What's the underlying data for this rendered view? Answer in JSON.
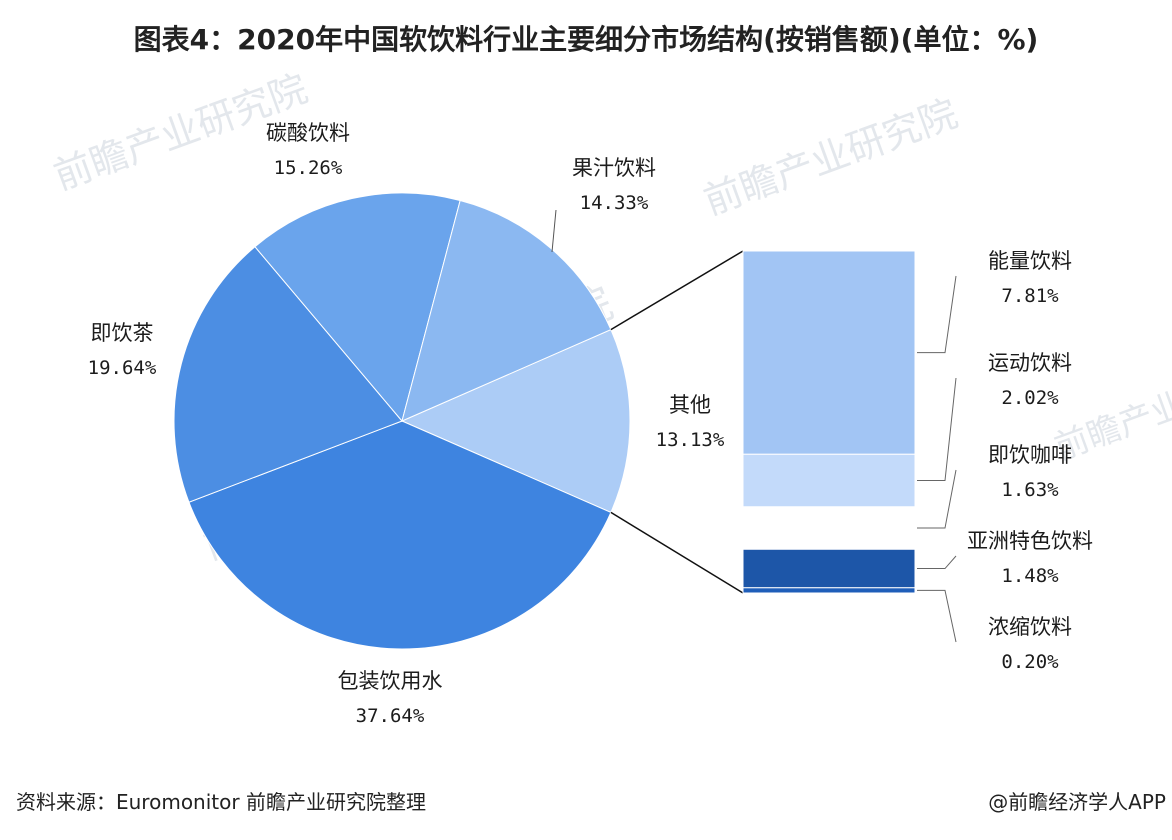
{
  "title": "图表4：2020年中国软饮料行业主要细分市场结构(按销售额)(单位：%)",
  "footer": {
    "source": "资料来源：Euromonitor 前瞻产业研究院整理",
    "brand": "@前瞻经济学人APP"
  },
  "watermark": "前瞻产业研究院",
  "chart_data": {
    "type": "bar-of-pie",
    "pie": {
      "slices": [
        {
          "name": "包装饮用水",
          "value": 37.64,
          "label": "37.64%",
          "color": "#3e84e0"
        },
        {
          "name": "即饮茶",
          "value": 19.64,
          "label": "19.64%",
          "color": "#4c8ee3"
        },
        {
          "name": "碳酸饮料",
          "value": 15.26,
          "label": "15.26%",
          "color": "#6aa4ec"
        },
        {
          "name": "果汁饮料",
          "value": 14.33,
          "label": "14.33%",
          "color": "#8bb8f1"
        },
        {
          "name": "其他",
          "value": 13.13,
          "label": "13.13%",
          "color": "#acccf6"
        }
      ]
    },
    "bar": {
      "of": "其他",
      "segments": [
        {
          "name": "能量饮料",
          "value": 7.81,
          "label": "7.81%",
          "color": "#a2c5f4"
        },
        {
          "name": "运动饮料",
          "value": 2.02,
          "label": "2.02%",
          "color": "#c3dafa"
        },
        {
          "name": "即饮咖啡",
          "value": 1.63,
          "label": "1.63%",
          "color": "#ffffff"
        },
        {
          "name": "亚洲特色饮料",
          "value": 1.48,
          "label": "1.48%",
          "color": "#1d56a8"
        },
        {
          "name": "浓缩饮料",
          "value": 0.2,
          "label": "0.20%",
          "color": "#1f5eb9"
        }
      ]
    }
  }
}
